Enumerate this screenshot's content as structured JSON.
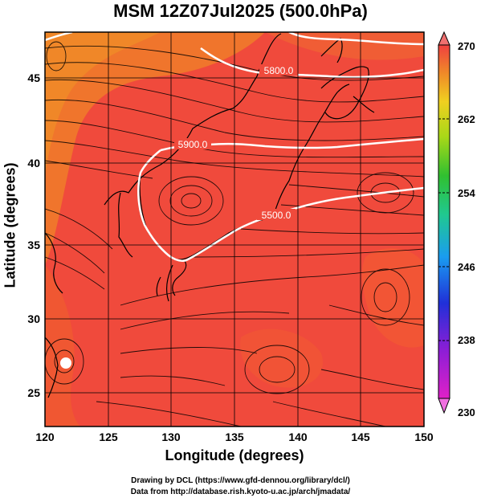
{
  "title": "MSM 12Z07Jul2025 (500.0hPa)",
  "axes": {
    "xlabel": "Longitude (degrees)",
    "ylabel": "Latitude  (degrees)",
    "xlim": [
      120,
      150
    ],
    "ylim": [
      22.5,
      47.5
    ],
    "xticks": [
      "120",
      "125",
      "130",
      "135",
      "140",
      "145",
      "150"
    ],
    "yticks": [
      "25",
      "30",
      "35",
      "40",
      "45"
    ]
  },
  "colorbar": {
    "ticks": [
      "230",
      "238",
      "246",
      "254",
      "262",
      "270"
    ],
    "range": [
      230,
      270
    ]
  },
  "contours": [
    {
      "label": "5800.0"
    },
    {
      "label": "5900.0"
    },
    {
      "label": "5500.0"
    }
  ],
  "credits": {
    "line1": "Drawing by DCL (https://www.gfd-dennou.org/library/dcl/)",
    "line2": "Data from http://database.rish.kyoto-u.ac.jp/arch/jmadata/"
  },
  "colors": {
    "field_main": "#f04a3c",
    "field_warm": "#f15a2a",
    "field_orange": "#f08a28",
    "contour": "#ffffff",
    "coast": "#000000"
  }
}
